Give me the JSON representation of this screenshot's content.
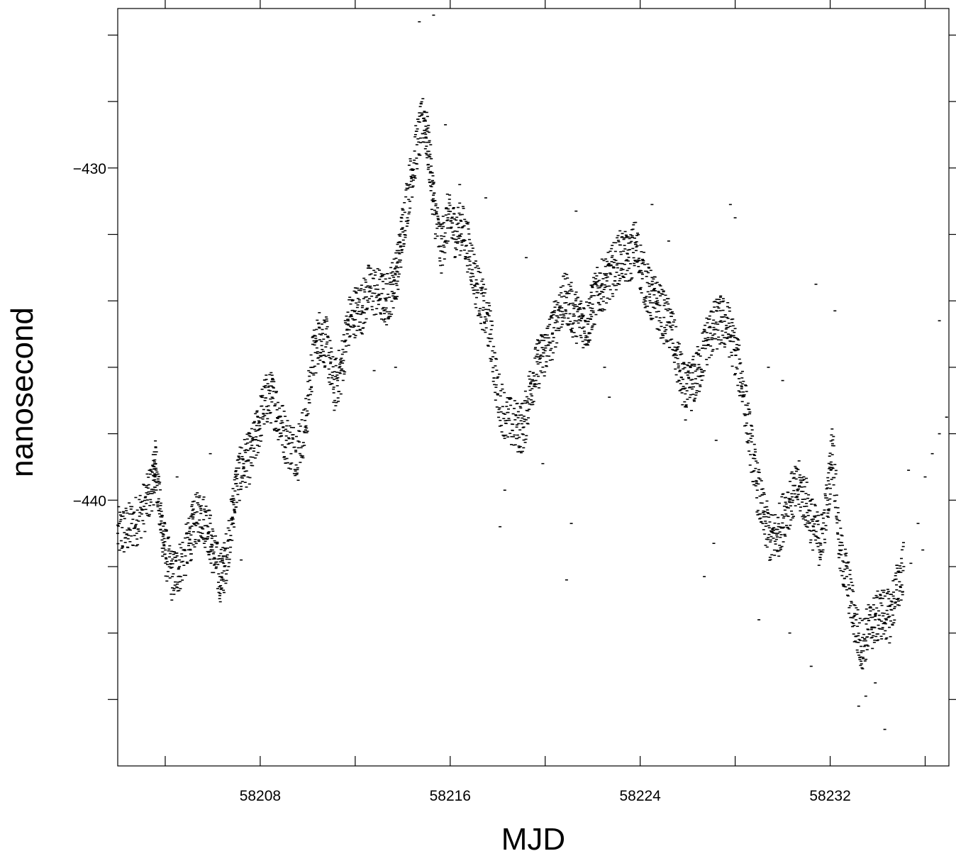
{
  "chart_data": {
    "type": "scatter",
    "title": "",
    "xlabel": "MJD",
    "ylabel": "nanosecond",
    "xlim": [
      58202,
      58237
    ],
    "ylim": [
      -448,
      -425.2
    ],
    "x_ticks": [
      {
        "value": 58204
      },
      {
        "value": 58208,
        "label": "58208"
      },
      {
        "value": 58212
      },
      {
        "value": 58216,
        "label": "58216"
      },
      {
        "value": 58220
      },
      {
        "value": 58224,
        "label": "58224"
      },
      {
        "value": 58228
      },
      {
        "value": 58232,
        "label": "58232"
      },
      {
        "value": 58236
      }
    ],
    "y_ticks": [
      {
        "value": -446
      },
      {
        "value": -444
      },
      {
        "value": -442
      },
      {
        "value": -440,
        "label": "−440"
      },
      {
        "value": -438
      },
      {
        "value": -436
      },
      {
        "value": -434
      },
      {
        "value": -432
      },
      {
        "value": -430,
        "label": "−430"
      },
      {
        "value": -428
      },
      {
        "value": -426
      }
    ],
    "grid": false,
    "legend": "none",
    "marker": "short horizontal dash",
    "series": [
      {
        "points": [
          [
            58202.0,
            -441.0
          ],
          [
            58202.4,
            -440.9
          ],
          [
            58202.8,
            -440.6
          ],
          [
            58203.2,
            -440.1
          ],
          [
            58203.5,
            -439.4
          ],
          [
            58203.6,
            -438.9
          ],
          [
            58203.8,
            -440.5
          ],
          [
            58204.0,
            -441.5
          ],
          [
            58204.3,
            -442.3
          ],
          [
            58204.6,
            -442.0
          ],
          [
            58205.0,
            -441.3
          ],
          [
            58205.2,
            -440.7
          ],
          [
            58205.5,
            -440.4
          ],
          [
            58205.8,
            -440.8
          ],
          [
            58206.0,
            -441.5
          ],
          [
            58206.3,
            -442.3
          ],
          [
            58206.5,
            -442.0
          ],
          [
            58206.8,
            -440.6
          ],
          [
            58207.0,
            -439.5
          ],
          [
            58207.3,
            -438.9
          ],
          [
            58207.6,
            -438.7
          ],
          [
            58207.9,
            -437.9
          ],
          [
            58208.2,
            -437.0
          ],
          [
            58208.5,
            -436.9
          ],
          [
            58208.8,
            -437.5
          ],
          [
            58209.1,
            -438.2
          ],
          [
            58209.5,
            -438.5
          ],
          [
            58209.9,
            -437.8
          ],
          [
            58210.2,
            -435.8
          ],
          [
            58210.5,
            -435.0
          ],
          [
            58210.8,
            -435.3
          ],
          [
            58211.1,
            -436.6
          ],
          [
            58211.4,
            -436.1
          ],
          [
            58211.7,
            -434.7
          ],
          [
            58212.0,
            -434.3
          ],
          [
            58212.3,
            -434.2
          ],
          [
            58212.6,
            -433.6
          ],
          [
            58213.0,
            -433.8
          ],
          [
            58213.3,
            -434.0
          ],
          [
            58213.6,
            -433.5
          ],
          [
            58213.8,
            -433.0
          ],
          [
            58214.0,
            -431.8
          ],
          [
            58214.3,
            -430.5
          ],
          [
            58214.6,
            -429.3
          ],
          [
            58214.9,
            -428.5
          ],
          [
            58215.1,
            -429.5
          ],
          [
            58215.3,
            -431.0
          ],
          [
            58215.6,
            -432.5
          ],
          [
            58215.9,
            -431.5
          ],
          [
            58216.2,
            -431.9
          ],
          [
            58216.5,
            -431.8
          ],
          [
            58216.8,
            -432.5
          ],
          [
            58217.1,
            -433.5
          ],
          [
            58217.4,
            -434.2
          ],
          [
            58217.7,
            -435.0
          ],
          [
            58218.0,
            -436.8
          ],
          [
            58218.4,
            -437.6
          ],
          [
            58218.8,
            -437.8
          ],
          [
            58219.1,
            -437.8
          ],
          [
            58219.4,
            -436.5
          ],
          [
            58219.7,
            -435.9
          ],
          [
            58220.0,
            -435.5
          ],
          [
            58220.3,
            -435.0
          ],
          [
            58220.6,
            -434.2
          ],
          [
            58220.9,
            -433.9
          ],
          [
            58221.2,
            -434.4
          ],
          [
            58221.5,
            -434.6
          ],
          [
            58221.8,
            -434.7
          ],
          [
            58222.0,
            -434.1
          ],
          [
            58222.3,
            -433.6
          ],
          [
            58222.6,
            -433.4
          ],
          [
            58222.9,
            -433.0
          ],
          [
            58223.2,
            -432.6
          ],
          [
            58223.5,
            -432.8
          ],
          [
            58223.8,
            -432.3
          ],
          [
            58224.1,
            -433.2
          ],
          [
            58224.4,
            -433.8
          ],
          [
            58224.7,
            -434.1
          ],
          [
            58225.0,
            -434.5
          ],
          [
            58225.3,
            -434.8
          ],
          [
            58225.6,
            -435.9
          ],
          [
            58225.9,
            -436.8
          ],
          [
            58226.2,
            -436.5
          ],
          [
            58226.5,
            -436.0
          ],
          [
            58226.8,
            -435.2
          ],
          [
            58227.1,
            -434.8
          ],
          [
            58227.4,
            -434.6
          ],
          [
            58227.7,
            -434.8
          ],
          [
            58228.0,
            -435.5
          ],
          [
            58228.3,
            -436.5
          ],
          [
            58228.6,
            -438.0
          ],
          [
            58228.9,
            -439.5
          ],
          [
            58229.2,
            -440.5
          ],
          [
            58229.5,
            -441.2
          ],
          [
            58229.8,
            -441.0
          ],
          [
            58230.1,
            -440.3
          ],
          [
            58230.4,
            -439.9
          ],
          [
            58230.7,
            -439.6
          ],
          [
            58231.0,
            -440.1
          ],
          [
            58231.3,
            -440.8
          ],
          [
            58231.6,
            -441.3
          ],
          [
            58231.9,
            -440.0
          ],
          [
            58232.1,
            -438.3
          ],
          [
            58232.4,
            -441.5
          ],
          [
            58232.7,
            -442.3
          ],
          [
            58233.0,
            -443.5
          ],
          [
            58233.3,
            -444.4
          ],
          [
            58233.6,
            -443.9
          ],
          [
            58233.9,
            -443.6
          ],
          [
            58234.2,
            -443.4
          ],
          [
            58234.5,
            -443.5
          ],
          [
            58234.8,
            -442.7
          ],
          [
            58235.1,
            -442.0
          ],
          [
            58235.4,
            -441.9
          ],
          [
            58235.7,
            -440.7
          ],
          [
            58236.0,
            -439.3
          ],
          [
            58236.3,
            -438.6
          ],
          [
            58236.6,
            -438.0
          ],
          [
            58236.9,
            -437.5
          ],
          [
            58207.2,
            -441.8
          ],
          [
            58209.6,
            -439.4
          ],
          [
            58212.8,
            -436.1
          ],
          [
            58214.2,
            -431.6
          ],
          [
            58215.8,
            -428.7
          ],
          [
            58216.4,
            -430.5
          ],
          [
            58217.5,
            -430.9
          ],
          [
            58218.3,
            -439.7
          ],
          [
            58219.9,
            -438.9
          ],
          [
            58221.3,
            -431.3
          ],
          [
            58222.7,
            -436.9
          ],
          [
            58224.5,
            -431.1
          ],
          [
            58225.2,
            -432.2
          ],
          [
            58226.7,
            -442.3
          ],
          [
            58227.2,
            -438.2
          ],
          [
            58227.8,
            -431.1
          ],
          [
            58229.0,
            -443.6
          ],
          [
            58230.3,
            -444.0
          ],
          [
            58230.0,
            -436.4
          ],
          [
            58231.4,
            -433.5
          ],
          [
            58232.2,
            -434.3
          ],
          [
            58233.2,
            -446.2
          ],
          [
            58233.9,
            -445.5
          ],
          [
            58234.3,
            -446.9
          ],
          [
            58235.3,
            -439.1
          ],
          [
            58235.9,
            -441.5
          ],
          [
            58236.6,
            -434.6
          ],
          [
            58204.5,
            -439.3
          ],
          [
            58205.9,
            -438.6
          ],
          [
            58221.1,
            -440.7
          ],
          [
            58219.2,
            -432.7
          ],
          [
            58213.7,
            -436.0
          ],
          [
            58227.1,
            -441.3
          ],
          [
            58215.3,
            -425.4
          ],
          [
            58214.7,
            -425.6
          ],
          [
            58231.2,
            -445.0
          ],
          [
            58233.5,
            -445.9
          ],
          [
            58229.4,
            -436.0
          ],
          [
            58228.0,
            -431.5
          ],
          [
            58220.9,
            -442.4
          ],
          [
            58218.1,
            -440.8
          ],
          [
            58222.5,
            -436.0
          ]
        ]
      }
    ]
  }
}
